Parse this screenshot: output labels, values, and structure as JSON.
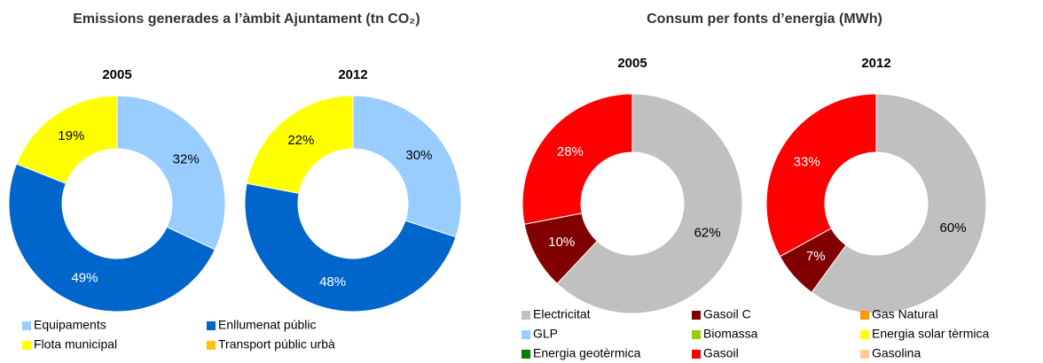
{
  "chart_data": [
    {
      "type": "donut",
      "title": "Emissions generades a l’àmbit Ajuntament (tn CO₂)",
      "categories": [
        "Equipaments",
        "Enllumenat públic",
        "Flota municipal",
        "Transport públic urbà"
      ],
      "colors": [
        "#99ccff",
        "#0066cc",
        "#ffff00",
        "#ffc000"
      ],
      "series": [
        {
          "name": "2005",
          "values": [
            32,
            49,
            19,
            0
          ],
          "value_labels": [
            "32%",
            "49%",
            "19%",
            null
          ]
        },
        {
          "name": "2012",
          "values": [
            30,
            48,
            22,
            0
          ],
          "value_labels": [
            "30%",
            "48%",
            "22%",
            null
          ]
        }
      ]
    },
    {
      "type": "donut",
      "title": "Consum per fonts d’energia (MWh)",
      "categories": [
        "Electricitat",
        "Gasoil C",
        "Gas Natural",
        "GLP",
        "Biomassa",
        "Energia solar tèrmica",
        "Energia geotèrmica",
        "Gasoil",
        "Gasolina"
      ],
      "colors": [
        "#c0c0c0",
        "#800000",
        "#ff9900",
        "#99ccff",
        "#99cc00",
        "#ffff00",
        "#008000",
        "#ff0000",
        "#ffcc99"
      ],
      "series": [
        {
          "name": "2005",
          "values": [
            62,
            10,
            0,
            0,
            0,
            0,
            0,
            28,
            0
          ],
          "value_labels": [
            "62%",
            "10%",
            null,
            null,
            null,
            null,
            null,
            "28%",
            null
          ]
        },
        {
          "name": "2012",
          "values": [
            60,
            7,
            0,
            0,
            0,
            0,
            0,
            33,
            0
          ],
          "value_labels": [
            "60%",
            "7%",
            null,
            null,
            null,
            null,
            null,
            "33%",
            null
          ]
        }
      ]
    }
  ]
}
